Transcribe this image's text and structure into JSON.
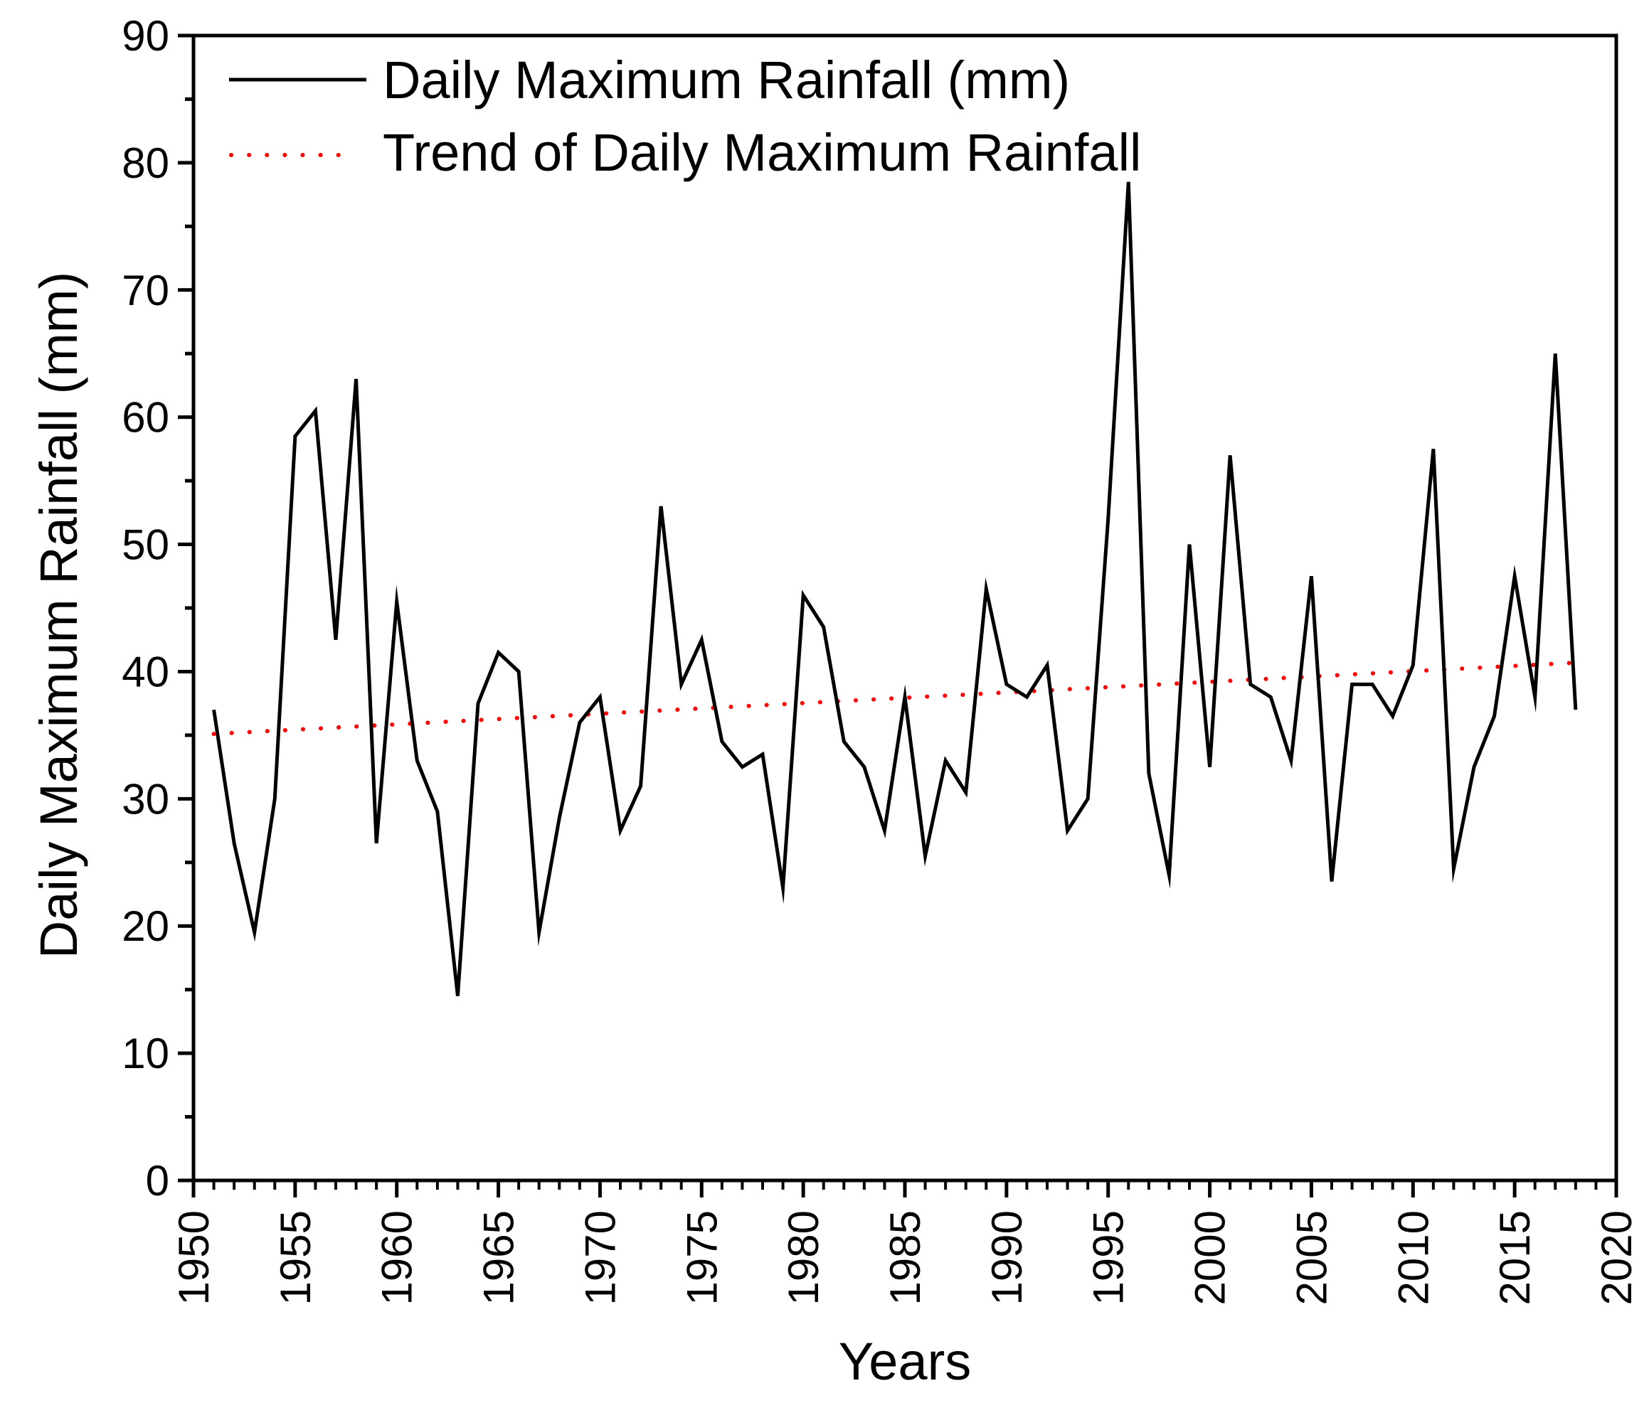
{
  "chart_data": {
    "type": "line",
    "xlabel": "Years",
    "ylabel": "Daily Maximum Rainfall (mm)",
    "xlim": [
      1950,
      2020
    ],
    "ylim": [
      0,
      90
    ],
    "xticks": [
      "1950",
      "1955",
      "1960",
      "1965",
      "1970",
      "1975",
      "1980",
      "1985",
      "1990",
      "1995",
      "2000",
      "2005",
      "2010",
      "2015",
      "2020"
    ],
    "yticks": [
      "0",
      "10",
      "20",
      "30",
      "40",
      "50",
      "60",
      "70",
      "80",
      "90"
    ],
    "legend_position": "top-left",
    "series": [
      {
        "name": "Daily Maximum Rainfall (mm)",
        "style": "solid",
        "color": "#000000",
        "x": [
          1951,
          1952,
          1953,
          1954,
          1955,
          1956,
          1957,
          1958,
          1959,
          1960,
          1961,
          1962,
          1963,
          1964,
          1965,
          1966,
          1967,
          1968,
          1969,
          1970,
          1971,
          1972,
          1973,
          1974,
          1975,
          1976,
          1977,
          1978,
          1979,
          1980,
          1981,
          1982,
          1983,
          1984,
          1985,
          1986,
          1987,
          1988,
          1989,
          1990,
          1991,
          1992,
          1993,
          1994,
          1995,
          1996,
          1997,
          1998,
          1999,
          2000,
          2001,
          2002,
          2003,
          2004,
          2005,
          2006,
          2007,
          2008,
          2009,
          2010,
          2011,
          2012,
          2013,
          2014,
          2015,
          2016,
          2017,
          2018
        ],
        "y": [
          37,
          26.5,
          19.5,
          30,
          58.5,
          60.5,
          42.5,
          63,
          26.5,
          45.5,
          33,
          29,
          14.5,
          37.5,
          41.5,
          40,
          19.5,
          28.5,
          36,
          38,
          27.5,
          31,
          53,
          39,
          42.5,
          34.5,
          32.5,
          33.5,
          23,
          46,
          43.5,
          34.5,
          32.5,
          27.5,
          38,
          25.5,
          33,
          30.5,
          46.5,
          39,
          38,
          40.5,
          27.5,
          30,
          52,
          78.5,
          32,
          24,
          50,
          32.5,
          57,
          39,
          38,
          33,
          47.5,
          23.5,
          39,
          39,
          36.5,
          40.5,
          57.5,
          24.5,
          32.5,
          36.5,
          47.5,
          38,
          65,
          37
        ]
      },
      {
        "name": "Trend of Daily Maximum Rainfall",
        "style": "dotted",
        "color": "#ff0000",
        "x": [
          1951,
          2018
        ],
        "y": [
          35.1,
          40.7
        ]
      }
    ]
  }
}
